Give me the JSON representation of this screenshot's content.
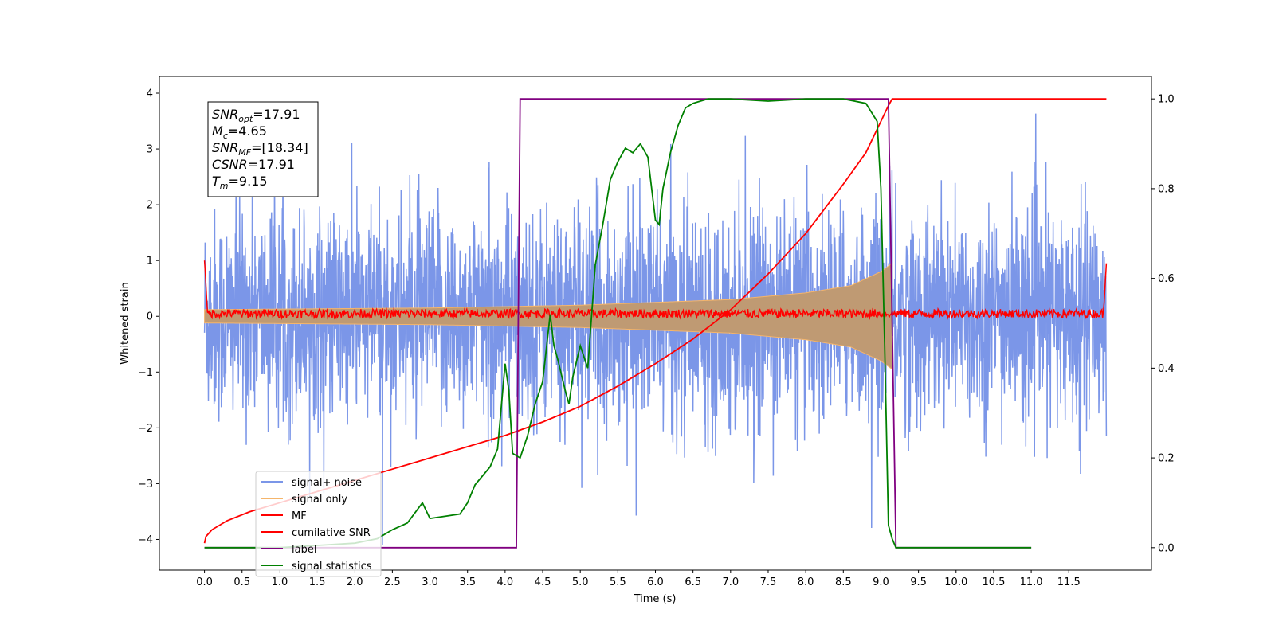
{
  "chart_data": {
    "type": "line",
    "xlabel": "Time (s)",
    "ylabel": "Whitened strain",
    "xlim": [
      -0.6,
      12.6
    ],
    "ylim": [
      -4.55,
      4.3
    ],
    "y2lim": [
      -0.05,
      1.05
    ],
    "x_ticks": [
      0.0,
      0.5,
      1.0,
      1.5,
      2.0,
      2.5,
      3.0,
      3.5,
      4.0,
      4.5,
      5.0,
      5.5,
      6.0,
      6.5,
      7.0,
      7.5,
      8.0,
      8.5,
      9.0,
      9.5,
      10.0,
      10.5,
      11.0,
      11.5
    ],
    "x_tick_labels": [
      "0.0",
      "0.5",
      "1.0",
      "1.5",
      "2.0",
      "2.5",
      "3.0",
      "3.5",
      "4.0",
      "4.5",
      "5.0",
      "5.5",
      "6.0",
      "6.5",
      "7.0",
      "7.5",
      "8.0",
      "8.5",
      "9.0",
      "9.5",
      "10.0",
      "10.5",
      "11.0",
      "11.5"
    ],
    "y_ticks": [
      -4,
      -3,
      -2,
      -1,
      0,
      1,
      2,
      3,
      4
    ],
    "y_tick_labels": [
      "−4",
      "−3",
      "−2",
      "−1",
      "0",
      "1",
      "2",
      "3",
      "4"
    ],
    "y2_ticks": [
      0.0,
      0.2,
      0.4,
      0.6,
      0.8,
      1.0
    ],
    "y2_tick_labels": [
      "0.0",
      "0.2",
      "0.4",
      "0.6",
      "0.8",
      "1.0"
    ],
    "grid": false,
    "legend_position": "lower-left",
    "annotation": {
      "lines": [
        {
          "main": "SNR",
          "sub": "opt",
          "rest": "=17.91"
        },
        {
          "main": "M",
          "sub": "c",
          "rest": "=4.65"
        },
        {
          "main": "SNR",
          "sub": "MF",
          "rest": "=[18.34]"
        },
        {
          "main": "CSNR",
          "sub": "",
          "rest": "=17.91"
        },
        {
          "main": "T",
          "sub": "m",
          "rest": "=9.15"
        }
      ]
    },
    "series": [
      {
        "name": "signal+ noise",
        "color": "#7b96e8",
        "axis": "left",
        "kind": "noise",
        "x_range": [
          0.0,
          12.0
        ],
        "amplitude_std": 1.0,
        "peak_range": [
          -4.1,
          3.9
        ]
      },
      {
        "name": "signal only",
        "color": "#f5b56b",
        "axis": "left",
        "kind": "chirp",
        "x_range": [
          0.0,
          9.15
        ],
        "amplitude_points": [
          [
            0.0,
            0.12
          ],
          [
            3.0,
            0.15
          ],
          [
            5.0,
            0.2
          ],
          [
            7.0,
            0.3
          ],
          [
            8.0,
            0.42
          ],
          [
            8.6,
            0.55
          ],
          [
            9.0,
            0.8
          ],
          [
            9.15,
            0.95
          ]
        ]
      },
      {
        "name": "MF",
        "color": "#ff0000",
        "axis": "left",
        "kind": "mf",
        "x_range": [
          0.0,
          12.0
        ],
        "level": 0.05,
        "jitter": 0.08,
        "start_value": 1.0,
        "end_value": 0.95
      },
      {
        "name": "cumilative SNR",
        "color": "#ff0000",
        "axis": "right",
        "x": [
          0.0,
          0.02,
          0.1,
          0.3,
          0.6,
          1.0,
          1.5,
          2.0,
          2.5,
          3.0,
          3.5,
          4.0,
          4.5,
          5.0,
          5.5,
          6.0,
          6.5,
          7.0,
          7.5,
          8.0,
          8.5,
          8.8,
          9.0,
          9.1,
          9.15,
          9.2,
          12.0
        ],
        "y": [
          0.01,
          0.025,
          0.04,
          0.06,
          0.08,
          0.1,
          0.125,
          0.15,
          0.175,
          0.2,
          0.225,
          0.25,
          0.28,
          0.315,
          0.36,
          0.41,
          0.465,
          0.53,
          0.61,
          0.7,
          0.81,
          0.88,
          0.95,
          0.985,
          1.0,
          1.0,
          1.0
        ]
      },
      {
        "name": "label",
        "color": "#800080",
        "axis": "right",
        "x": [
          0.0,
          4.15,
          4.2,
          9.1,
          9.2,
          11.0
        ],
        "y": [
          0.0,
          0.0,
          1.0,
          1.0,
          0.0,
          0.0
        ]
      },
      {
        "name": "signal statistics",
        "color": "#008000",
        "axis": "right",
        "x": [
          0.0,
          0.5,
          1.0,
          1.5,
          2.0,
          2.3,
          2.5,
          2.7,
          2.9,
          3.0,
          3.2,
          3.4,
          3.5,
          3.6,
          3.7,
          3.8,
          3.9,
          4.0,
          4.05,
          4.1,
          4.2,
          4.3,
          4.4,
          4.5,
          4.6,
          4.65,
          4.7,
          4.8,
          4.85,
          4.9,
          5.0,
          5.1,
          5.2,
          5.3,
          5.4,
          5.5,
          5.6,
          5.7,
          5.8,
          5.9,
          6.0,
          6.05,
          6.1,
          6.2,
          6.3,
          6.4,
          6.5,
          6.7,
          7.0,
          7.5,
          8.0,
          8.5,
          8.8,
          8.95,
          9.0,
          9.05,
          9.1,
          9.15,
          9.2,
          9.5,
          10.0,
          11.0
        ],
        "y": [
          0.0,
          0.0,
          0.0,
          0.005,
          0.01,
          0.02,
          0.04,
          0.055,
          0.1,
          0.065,
          0.07,
          0.075,
          0.1,
          0.14,
          0.16,
          0.18,
          0.22,
          0.41,
          0.35,
          0.21,
          0.2,
          0.25,
          0.32,
          0.37,
          0.52,
          0.45,
          0.42,
          0.35,
          0.32,
          0.38,
          0.45,
          0.4,
          0.63,
          0.72,
          0.82,
          0.86,
          0.89,
          0.88,
          0.9,
          0.87,
          0.73,
          0.72,
          0.8,
          0.88,
          0.94,
          0.98,
          0.99,
          1.0,
          1.0,
          0.995,
          1.0,
          1.0,
          0.99,
          0.95,
          0.8,
          0.45,
          0.05,
          0.02,
          0.0,
          0.0,
          0.0,
          0.0
        ]
      }
    ]
  }
}
